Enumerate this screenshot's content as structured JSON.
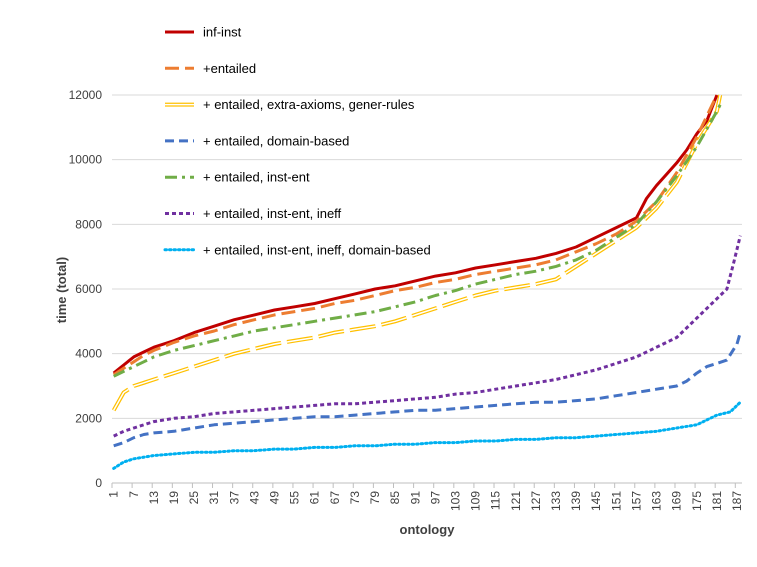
{
  "chart_data": {
    "type": "line",
    "xlabel": "ontology",
    "ylabel": "time (total)",
    "ylim": [
      0,
      12000
    ],
    "yticks": [
      0,
      2000,
      4000,
      6000,
      8000,
      10000,
      12000
    ],
    "xlim": [
      1,
      188
    ],
    "xticks": [
      1,
      7,
      13,
      19,
      25,
      31,
      37,
      43,
      49,
      55,
      61,
      67,
      73,
      79,
      85,
      91,
      97,
      103,
      109,
      115,
      121,
      127,
      133,
      139,
      145,
      151,
      157,
      163,
      169,
      175,
      181,
      187
    ],
    "grid": "horizontal",
    "legend_position": "top-left",
    "series": [
      {
        "name": "inf-inst",
        "color": "#C00000",
        "style": "solid",
        "x": [
          1,
          4,
          7,
          10,
          13,
          19,
          25,
          31,
          37,
          43,
          49,
          55,
          61,
          67,
          73,
          79,
          85,
          91,
          97,
          103,
          109,
          115,
          121,
          127,
          133,
          139,
          145,
          151,
          157,
          160,
          163,
          166,
          169,
          172,
          175,
          178,
          181
        ],
        "values": [
          3400,
          3650,
          3900,
          4050,
          4200,
          4400,
          4650,
          4850,
          5050,
          5200,
          5350,
          5450,
          5550,
          5700,
          5850,
          6000,
          6100,
          6250,
          6400,
          6500,
          6650,
          6750,
          6850,
          6950,
          7100,
          7300,
          7600,
          7900,
          8200,
          8800,
          9200,
          9550,
          9900,
          10300,
          10800,
          11200,
          12000
        ]
      },
      {
        "name": "+entailed",
        "color": "#ED7D31",
        "style": "long-dash",
        "x": [
          1,
          4,
          7,
          10,
          13,
          19,
          25,
          31,
          37,
          43,
          49,
          55,
          61,
          67,
          73,
          79,
          85,
          91,
          97,
          103,
          109,
          115,
          121,
          127,
          133,
          139,
          145,
          151,
          157,
          163,
          169,
          175,
          181
        ],
        "values": [
          3350,
          3550,
          3750,
          3950,
          4100,
          4350,
          4550,
          4700,
          4900,
          5050,
          5200,
          5300,
          5400,
          5550,
          5650,
          5800,
          5950,
          6050,
          6200,
          6300,
          6450,
          6550,
          6650,
          6750,
          6900,
          7150,
          7400,
          7700,
          8100,
          8700,
          9600,
          10700,
          12000
        ]
      },
      {
        "name": "+ entailed, extra-axioms, gener-rules",
        "color": "#FFC000",
        "style": "double",
        "x": [
          1,
          4,
          7,
          10,
          13,
          19,
          25,
          31,
          37,
          43,
          49,
          55,
          61,
          67,
          73,
          79,
          85,
          91,
          97,
          103,
          109,
          115,
          121,
          127,
          133,
          139,
          145,
          151,
          157,
          163,
          169,
          175,
          181,
          182
        ],
        "values": [
          2250,
          2800,
          3000,
          3100,
          3200,
          3400,
          3600,
          3800,
          4000,
          4150,
          4300,
          4400,
          4500,
          4650,
          4750,
          4850,
          5000,
          5200,
          5400,
          5600,
          5800,
          5950,
          6050,
          6150,
          6300,
          6700,
          7100,
          7500,
          7900,
          8500,
          9300,
          10500,
          11500,
          12000
        ]
      },
      {
        "name": "+ entailed, domain-based",
        "color": "#4472C4",
        "style": "dash",
        "x": [
          1,
          4,
          7,
          10,
          13,
          19,
          25,
          31,
          37,
          43,
          49,
          55,
          61,
          67,
          73,
          79,
          85,
          91,
          97,
          103,
          109,
          115,
          121,
          127,
          133,
          139,
          145,
          151,
          157,
          163,
          169,
          172,
          175,
          178,
          181,
          184,
          187,
          188
        ],
        "values": [
          1150,
          1250,
          1400,
          1500,
          1550,
          1600,
          1700,
          1800,
          1850,
          1900,
          1950,
          2000,
          2050,
          2050,
          2100,
          2150,
          2200,
          2250,
          2250,
          2300,
          2350,
          2400,
          2450,
          2500,
          2500,
          2550,
          2600,
          2700,
          2800,
          2900,
          3000,
          3150,
          3400,
          3600,
          3700,
          3800,
          4300,
          4650
        ]
      },
      {
        "name": "+ entailed, inst-ent",
        "color": "#70AD47",
        "style": "dash-dot",
        "x": [
          1,
          4,
          7,
          10,
          13,
          19,
          25,
          31,
          37,
          43,
          49,
          55,
          61,
          67,
          73,
          79,
          85,
          91,
          97,
          103,
          109,
          115,
          121,
          127,
          133,
          139,
          145,
          151,
          157,
          163,
          169,
          175,
          181,
          182
        ],
        "values": [
          3300,
          3450,
          3600,
          3750,
          3900,
          4100,
          4250,
          4400,
          4550,
          4700,
          4800,
          4900,
          5000,
          5100,
          5200,
          5300,
          5450,
          5600,
          5800,
          5950,
          6150,
          6300,
          6450,
          6550,
          6700,
          6900,
          7200,
          7600,
          8000,
          8700,
          9500,
          10400,
          11500,
          11700
        ]
      },
      {
        "name": "+ entailed, inst-ent, ineff",
        "color": "#7030A0",
        "style": "short-dash",
        "x": [
          1,
          4,
          7,
          10,
          13,
          19,
          25,
          31,
          37,
          43,
          49,
          55,
          61,
          67,
          73,
          79,
          85,
          91,
          97,
          103,
          109,
          115,
          121,
          127,
          133,
          139,
          145,
          151,
          157,
          163,
          169,
          175,
          181,
          184,
          186,
          188
        ],
        "values": [
          1450,
          1600,
          1700,
          1800,
          1900,
          2000,
          2050,
          2150,
          2200,
          2250,
          2300,
          2350,
          2400,
          2450,
          2450,
          2500,
          2550,
          2600,
          2650,
          2750,
          2800,
          2900,
          3000,
          3100,
          3200,
          3350,
          3500,
          3700,
          3900,
          4200,
          4500,
          5100,
          5700,
          6000,
          6800,
          7650
        ]
      },
      {
        "name": "+ entailed, inst-ent, ineff, domain-based",
        "color": "#00B0F0",
        "style": "dotted",
        "x": [
          1,
          4,
          7,
          13,
          19,
          25,
          31,
          37,
          43,
          49,
          55,
          61,
          67,
          73,
          79,
          85,
          91,
          97,
          103,
          109,
          115,
          121,
          127,
          133,
          139,
          145,
          151,
          157,
          163,
          169,
          175,
          181,
          185,
          188
        ],
        "values": [
          450,
          650,
          750,
          850,
          900,
          950,
          950,
          1000,
          1000,
          1050,
          1050,
          1100,
          1100,
          1150,
          1150,
          1200,
          1200,
          1250,
          1250,
          1300,
          1300,
          1350,
          1350,
          1400,
          1400,
          1450,
          1500,
          1550,
          1600,
          1700,
          1800,
          2100,
          2200,
          2500
        ]
      }
    ]
  }
}
